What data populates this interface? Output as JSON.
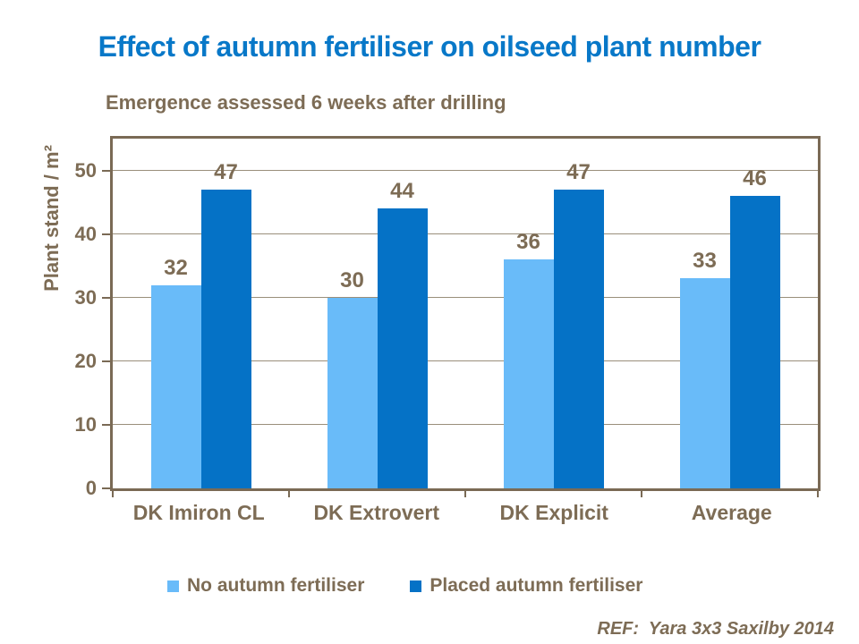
{
  "colors": {
    "title_blue": "#0878C8",
    "text_brown": "#7D6C55",
    "plot_border": "#7A6A55",
    "gridline": "#9A8F7B",
    "series_light_blue": "#69BBF9",
    "series_dark_blue": "#0572C6",
    "background": "#FFFFFF"
  },
  "chart_data": {
    "type": "bar",
    "title": "Effect of autumn fertiliser on oilseed plant number",
    "subtitle": "Emergence assessed 6 weeks after drilling",
    "categories": [
      "DK Imiron CL",
      "DK Extrovert",
      "DK Explicit",
      "Average"
    ],
    "series": [
      {
        "name": "No autumn fertiliser",
        "color": "#69BBF9",
        "values": [
          32,
          30,
          36,
          33
        ]
      },
      {
        "name": "Placed autumn fertiliser",
        "color": "#0572C6",
        "values": [
          47,
          44,
          47,
          46
        ]
      }
    ],
    "xlabel": "",
    "ylabel": "Plant stand / m²",
    "yticks": [
      0,
      10,
      20,
      30,
      40,
      50
    ],
    "ylim": [
      0,
      55
    ],
    "grid": "horizontal",
    "legend_position": "bottom",
    "data_labels": true
  },
  "footer": {
    "ref_text": "REF:  Yara 3x3 Saxilby 2014"
  }
}
